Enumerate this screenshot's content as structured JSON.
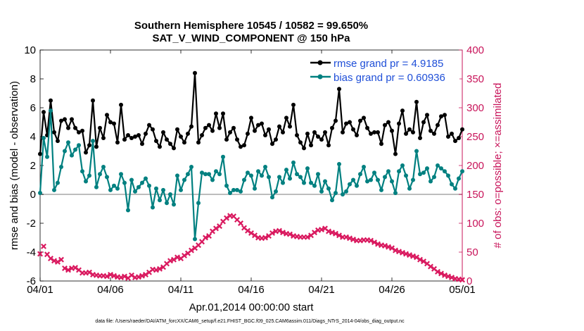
{
  "chart_data": {
    "type": "line",
    "title_line1": "Southern Hemisphere 10545 / 10582 = 99.650%",
    "title_line2": "SAT_V_WIND_COMPONENT @ 150 hPa",
    "xlabel": "Apr.01,2014 00:00:00 start",
    "ylabel": "rmse and bias (model - observation)",
    "ylabel_right": "# of obs: o=possible; ×=assimilated",
    "footer": "data file: /Users/raeder/DAI/ATM_forcXX/CAM6_setup/f.e21.FHIST_BGC.f09_025.CAM6assim.011/Diags_NTrS_2014-04/obs_diag_output.nc",
    "xlim": [
      0,
      30
    ],
    "ylim": [
      -6,
      10
    ],
    "ylim_right": [
      0,
      400
    ],
    "x_ticks": [
      {
        "value": 0,
        "label": "04/01"
      },
      {
        "value": 5,
        "label": "04/06"
      },
      {
        "value": 10,
        "label": "04/11"
      },
      {
        "value": 15,
        "label": "04/16"
      },
      {
        "value": 20,
        "label": "04/21"
      },
      {
        "value": 25,
        "label": "04/26"
      },
      {
        "value": 30,
        "label": "05/01"
      }
    ],
    "y_ticks": [
      -6,
      -4,
      -2,
      0,
      2,
      4,
      6,
      8,
      10
    ],
    "y_ticks_right": [
      0,
      50,
      100,
      150,
      200,
      250,
      300,
      350,
      400
    ],
    "colors": {
      "rmse": "#000000",
      "bias": "#008080",
      "obs": "#d9185e",
      "right_axis": "#c8145a",
      "zero_line": "#bdbdbd",
      "legend_text": "#1f4fd8"
    },
    "series": [
      {
        "name": "rmse grand pr = 4.9185",
        "x_step": 0.25,
        "values": [
          2.8,
          5.7,
          4.1,
          6.5,
          4.3,
          3.7,
          5.1,
          5.2,
          4.6,
          5.2,
          4.6,
          4.3,
          4.4,
          2.9,
          3.4,
          6.5,
          3.3,
          4.6,
          3.9,
          5.5,
          5.0,
          4.9,
          3.6,
          6.2,
          3.8,
          4.1,
          3.9,
          4.0,
          4.1,
          3.5,
          4.2,
          4.8,
          4.5,
          3.7,
          3.3,
          4.3,
          3.8,
          3.5,
          3.2,
          4.5,
          4.0,
          3.6,
          4.2,
          4.7,
          8.4,
          3.6,
          4.1,
          4.6,
          4.8,
          4.4,
          5.6,
          4.6,
          5.6,
          3.8,
          4.3,
          4.6,
          3.8,
          3.3,
          3.4,
          4.2,
          5.3,
          4.4,
          4.8,
          4.9,
          4.1,
          4.5,
          3.5,
          3.8,
          4.7,
          4.3,
          5.3,
          4.7,
          6.2,
          4.1,
          3.6,
          3.2,
          4.2,
          3.4,
          4.3,
          4.0,
          3.8,
          4.3,
          3.4,
          4.6,
          5.1,
          7.3,
          4.3,
          4.9,
          5.0,
          4.5,
          4.1,
          5.1,
          5.3,
          4.6,
          4.2,
          4.3,
          4.3,
          3.5,
          4.8,
          5.0,
          4.4,
          2.8,
          4.9,
          5.8,
          4.2,
          4.5,
          4.3,
          6.4,
          3.9,
          5.0,
          5.5,
          4.4,
          4.2,
          4.8,
          5.4,
          5.5,
          4.0,
          4.2,
          3.7,
          3.9,
          4.5
        ]
      },
      {
        "name": "bias grand pr = 0.60936",
        "x_step": 0.25,
        "values": [
          0.1,
          3.9,
          2.6,
          5.8,
          0.3,
          0.8,
          1.9,
          3.0,
          3.6,
          2.7,
          3.1,
          3.4,
          1.6,
          0.9,
          1.3,
          3.7,
          0.5,
          1.4,
          1.9,
          1.2,
          0.3,
          0.6,
          0.4,
          1.4,
          0.8,
          -1.1,
          1.0,
          0.2,
          0.5,
          0.8,
          1.1,
          0.6,
          -0.9,
          0.4,
          -0.4,
          0.3,
          -0.6,
          0.0,
          -0.7,
          1.3,
          0.3,
          1.0,
          1.4,
          1.9,
          -3.1,
          -0.6,
          1.5,
          1.4,
          1.4,
          1.0,
          1.6,
          1.4,
          2.6,
          0.6,
          0.1,
          0.3,
          0.3,
          0.2,
          1.0,
          1.5,
          1.3,
          0.4,
          1.6,
          1.3,
          1.9,
          1.2,
          -0.2,
          0.2,
          1.2,
          0.8,
          1.7,
          1.1,
          2.2,
          1.4,
          1.2,
          0.8,
          1.8,
          0.8,
          0.6,
          1.4,
          0.2,
          0.9,
          0.4,
          -0.4,
          0.1,
          2.1,
          0.0,
          0.2,
          0.7,
          1.0,
          0.6,
          1.4,
          1.9,
          0.9,
          1.0,
          1.5,
          1.0,
          0.3,
          1.2,
          1.6,
          0.9,
          0.1,
          1.6,
          2.0,
          1.3,
          0.4,
          1.0,
          3.0,
          1.4,
          1.5,
          1.8,
          0.9,
          1.2,
          2.0,
          1.8,
          1.6,
          1.3,
          0.7,
          0.4,
          1.1,
          1.6
        ]
      }
    ],
    "obs_points": {
      "description": "# of obs assimilated",
      "x_step": 0.25,
      "values": [
        47,
        60,
        46,
        39,
        35,
        33,
        37,
        22,
        19,
        22,
        23,
        19,
        14,
        14,
        15,
        11,
        10,
        9,
        9,
        8,
        11,
        9,
        7,
        6,
        8,
        5,
        10,
        6,
        7,
        9,
        11,
        15,
        20,
        19,
        21,
        24,
        30,
        35,
        37,
        41,
        39,
        44,
        48,
        53,
        57,
        62,
        68,
        75,
        78,
        86,
        91,
        95,
        103,
        109,
        113,
        112,
        106,
        100,
        92,
        87,
        83,
        79,
        75,
        74,
        75,
        78,
        83,
        86,
        87,
        84,
        82,
        81,
        78,
        77,
        76,
        76,
        76,
        79,
        84,
        88,
        89,
        91,
        86,
        84,
        82,
        79,
        76,
        76,
        74,
        72,
        70,
        70,
        71,
        71,
        70,
        67,
        64,
        62,
        61,
        59,
        57,
        53,
        51,
        49,
        47,
        45,
        43,
        41,
        37,
        34,
        30,
        25,
        21,
        16,
        13,
        10,
        8,
        6,
        4,
        3,
        2
      ]
    },
    "obs_possible_points": [],
    "legend_position": "top-right"
  }
}
